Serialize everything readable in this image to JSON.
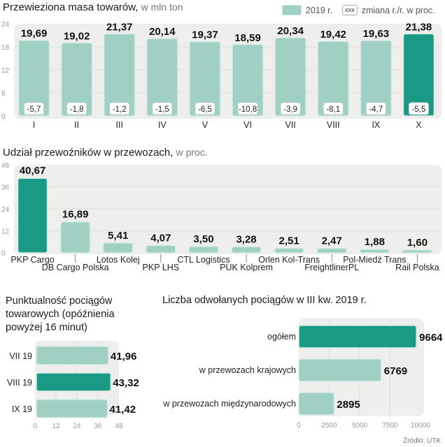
{
  "colors": {
    "bar": "#9fd0c3",
    "highlight": "#1a9a84",
    "panel": "#eeeeec",
    "grid": "#dedede"
  },
  "legend": {
    "series_label": "2019 r.",
    "box_sample": "xxx",
    "box_label": "zmiana r./r. w proc."
  },
  "source": "Źródło: UTK",
  "chart_data": [
    {
      "id": "masa",
      "type": "bar",
      "title": "Przewieziona masa towarów,",
      "title_unit": "w mln ton",
      "categories": [
        "I",
        "II",
        "III",
        "IV",
        "V",
        "VI",
        "VII",
        "VIII",
        "IX",
        "X"
      ],
      "values": [
        19.69,
        19.02,
        21.37,
        20.14,
        19.37,
        18.59,
        20.34,
        19.42,
        19.63,
        21.38
      ],
      "value_labels": [
        "19,69",
        "19,02",
        "21,37",
        "20,14",
        "19,37",
        "18,59",
        "20,34",
        "19,42",
        "19,63",
        "21,38"
      ],
      "change_labels": [
        "-5,7",
        "-1,8",
        "-1,2",
        "-1,5",
        "-6,5",
        "-10,8",
        "-3,9",
        "-8,1",
        "-4,7",
        "-5,5"
      ],
      "highlight_index": 9,
      "ylim": [
        0,
        24
      ],
      "yticks": [
        "0",
        "6",
        "12",
        "18",
        "24"
      ],
      "grid": true,
      "legend": "top-right"
    },
    {
      "id": "udzial",
      "type": "bar",
      "title": "Udział przewoźników w przewozach,",
      "title_unit": "w proc.",
      "categories": [
        "PKP Cargo",
        "DB Cargo Polska",
        "Lotos Kolej",
        "PKP LHS",
        "CTL Logistics",
        "PUK Kolprem",
        "Orlen Kol-Trans",
        "FreightlinerPL",
        "Pol-Miedź Trans",
        "Rail Polska"
      ],
      "values": [
        40.67,
        16.89,
        5.41,
        4.07,
        3.5,
        3.28,
        2.51,
        2.47,
        1.88,
        1.6
      ],
      "value_labels": [
        "40,67",
        "16,89",
        "5,41",
        "4,07",
        "3,50",
        "3,28",
        "2,51",
        "2,47",
        "1,88",
        "1,60"
      ],
      "highlight_index": 0,
      "ylim": [
        0,
        48
      ],
      "yticks": [
        "0",
        "12",
        "24",
        "36",
        "48"
      ],
      "grid": true
    },
    {
      "id": "punktualnosc",
      "type": "bar",
      "orientation": "horizontal",
      "title": "Punktualność pociągów towarowych (opóźnienia powyżej 16 minut)",
      "categories": [
        "VII 19",
        "VIII 19",
        "IX 19"
      ],
      "values": [
        41.96,
        43.32,
        41.42
      ],
      "value_labels": [
        "41,96",
        "43,32",
        "41,42"
      ],
      "highlight_index": 1,
      "xlim": [
        0,
        48
      ],
      "xticks": [
        "0",
        "12",
        "24",
        "36",
        "48"
      ],
      "grid": true
    },
    {
      "id": "odwolane",
      "type": "bar",
      "orientation": "horizontal",
      "title": "Liczba odwołanych pociągów w III kw. 2019 r.",
      "categories": [
        "ogółem",
        "w przewozach krajowych",
        "w przewozach międzynarodowych"
      ],
      "values": [
        9664,
        6769,
        2895
      ],
      "value_labels": [
        "9664",
        "6769",
        "2895"
      ],
      "highlight_index": 0,
      "xlim": [
        0,
        10000
      ],
      "xticks": [
        "0",
        "2500",
        "5000",
        "7500",
        "10000"
      ],
      "grid": true
    }
  ]
}
